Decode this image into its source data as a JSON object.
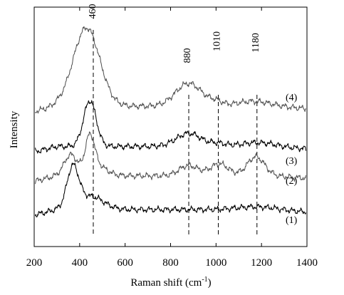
{
  "chart_data": {
    "type": "line",
    "xlabel": "Raman shift (cm-1)",
    "xlabel_main": "Raman shift (cm",
    "xlabel_sup": "-1",
    "xlabel_close": ")",
    "ylabel": "Intensity",
    "xlim": [
      200,
      1400
    ],
    "x_ticks": [
      200,
      400,
      600,
      800,
      1000,
      1200,
      1400
    ],
    "x_tick_labels": [
      "200",
      "400",
      "600",
      "800",
      "1000",
      "1200",
      "1400"
    ],
    "y_ticks": [],
    "grid": false,
    "peak_markers": [
      460,
      880,
      1010,
      1180
    ],
    "peak_labels": [
      "460",
      "880",
      "1010",
      "1180"
    ],
    "series": [
      {
        "label": "(1)",
        "color": "#000000",
        "baseline": 3.4,
        "peaks": [
          {
            "center": 370,
            "amp": 3.7,
            "width": 26
          },
          {
            "center": 450,
            "amp": 1.2,
            "width": 55
          },
          {
            "center": 1170,
            "amp": 0.25,
            "width": 80
          }
        ]
      },
      {
        "label": "(2)",
        "color": "#555555",
        "baseline": 6.5,
        "peaks": [
          {
            "center": 360,
            "amp": 1.9,
            "width": 28
          },
          {
            "center": 445,
            "amp": 3.0,
            "width": 20
          },
          {
            "center": 470,
            "amp": 1.0,
            "width": 45
          },
          {
            "center": 880,
            "amp": 0.95,
            "width": 42
          },
          {
            "center": 1015,
            "amp": 1.1,
            "width": 40
          },
          {
            "center": 1175,
            "amp": 1.75,
            "width": 38
          }
        ]
      },
      {
        "label": "(3)",
        "color": "#000000",
        "baseline": 9.2,
        "peaks": [
          {
            "center": 445,
            "amp": 4.2,
            "width": 28
          },
          {
            "center": 880,
            "amp": 1.2,
            "width": 55
          },
          {
            "center": 1010,
            "amp": 0.25,
            "width": 35
          },
          {
            "center": 1180,
            "amp": 0.35,
            "width": 70
          }
        ]
      },
      {
        "label": "(4)",
        "color": "#555555",
        "baseline": 12.9,
        "peaks": [
          {
            "center": 430,
            "amp": 7.2,
            "width": 58
          },
          {
            "center": 880,
            "amp": 2.1,
            "width": 58
          },
          {
            "center": 1000,
            "amp": 0.35,
            "width": 30
          },
          {
            "center": 1160,
            "amp": 0.45,
            "width": 70
          }
        ]
      }
    ]
  }
}
